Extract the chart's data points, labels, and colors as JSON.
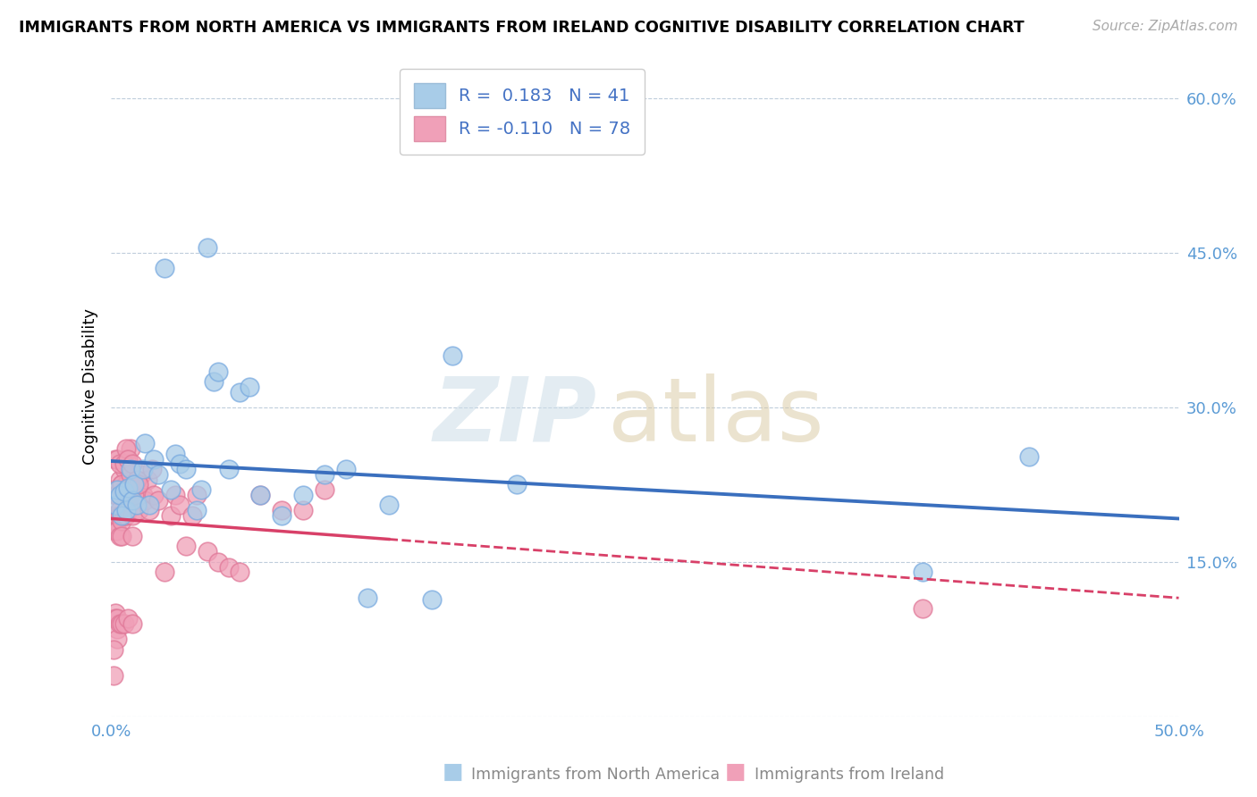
{
  "title": "IMMIGRANTS FROM NORTH AMERICA VS IMMIGRANTS FROM IRELAND COGNITIVE DISABILITY CORRELATION CHART",
  "source": "Source: ZipAtlas.com",
  "ylabel": "Cognitive Disability",
  "xlim": [
    0.0,
    0.5
  ],
  "ylim": [
    0.0,
    0.64
  ],
  "y_ticks": [
    0.0,
    0.15,
    0.3,
    0.45,
    0.6
  ],
  "y_tick_labels": [
    "",
    "15.0%",
    "30.0%",
    "45.0%",
    "60.0%"
  ],
  "x_ticks": [
    0.0,
    0.1,
    0.2,
    0.3,
    0.4,
    0.5
  ],
  "x_tick_labels": [
    "0.0%",
    "",
    "",
    "",
    "",
    "50.0%"
  ],
  "color_blue": "#a8cce8",
  "color_blue_edge": "#7aabe0",
  "color_pink": "#f0a0b8",
  "color_pink_edge": "#e07898",
  "line_blue": "#3a6fbe",
  "line_pink": "#d84068",
  "watermark_zip": "ZIP",
  "watermark_atlas": "atlas",
  "R_blue": 0.183,
  "N_blue": 41,
  "R_pink": -0.11,
  "N_pink": 78,
  "legend_label_na": "Immigrants from North America",
  "legend_label_ire": "Immigrants from Ireland",
  "north_america_x": [
    0.002,
    0.003,
    0.004,
    0.005,
    0.006,
    0.007,
    0.008,
    0.009,
    0.01,
    0.011,
    0.012,
    0.015,
    0.016,
    0.018,
    0.02,
    0.022,
    0.025,
    0.028,
    0.03,
    0.032,
    0.035,
    0.04,
    0.042,
    0.045,
    0.048,
    0.05,
    0.055,
    0.06,
    0.065,
    0.07,
    0.08,
    0.09,
    0.1,
    0.11,
    0.12,
    0.13,
    0.15,
    0.16,
    0.19,
    0.38,
    0.43
  ],
  "north_america_y": [
    0.205,
    0.22,
    0.215,
    0.195,
    0.218,
    0.2,
    0.222,
    0.24,
    0.21,
    0.225,
    0.205,
    0.24,
    0.265,
    0.205,
    0.25,
    0.235,
    0.435,
    0.22,
    0.255,
    0.245,
    0.24,
    0.2,
    0.22,
    0.455,
    0.325,
    0.335,
    0.24,
    0.315,
    0.32,
    0.215,
    0.195,
    0.215,
    0.235,
    0.24,
    0.115,
    0.205,
    0.113,
    0.35,
    0.225,
    0.14,
    0.252
  ],
  "ireland_x": [
    0.001,
    0.001,
    0.001,
    0.002,
    0.002,
    0.002,
    0.002,
    0.002,
    0.003,
    0.003,
    0.003,
    0.003,
    0.003,
    0.003,
    0.004,
    0.004,
    0.004,
    0.004,
    0.004,
    0.005,
    0.005,
    0.005,
    0.005,
    0.006,
    0.006,
    0.006,
    0.006,
    0.007,
    0.007,
    0.007,
    0.008,
    0.008,
    0.008,
    0.009,
    0.009,
    0.01,
    0.01,
    0.01,
    0.011,
    0.012,
    0.013,
    0.014,
    0.015,
    0.016,
    0.017,
    0.018,
    0.019,
    0.02,
    0.022,
    0.025,
    0.028,
    0.03,
    0.032,
    0.035,
    0.038,
    0.04,
    0.045,
    0.05,
    0.055,
    0.06,
    0.07,
    0.08,
    0.09,
    0.1,
    0.002,
    0.003,
    0.004,
    0.005,
    0.006,
    0.007,
    0.008,
    0.009,
    0.01,
    0.011,
    0.012,
    0.013,
    0.38,
    0.001
  ],
  "ireland_y": [
    0.22,
    0.195,
    0.04,
    0.215,
    0.19,
    0.18,
    0.1,
    0.095,
    0.215,
    0.195,
    0.18,
    0.095,
    0.085,
    0.075,
    0.23,
    0.2,
    0.195,
    0.175,
    0.09,
    0.225,
    0.19,
    0.175,
    0.09,
    0.24,
    0.22,
    0.195,
    0.09,
    0.25,
    0.225,
    0.195,
    0.22,
    0.2,
    0.095,
    0.26,
    0.225,
    0.195,
    0.175,
    0.09,
    0.215,
    0.225,
    0.2,
    0.235,
    0.215,
    0.21,
    0.23,
    0.2,
    0.24,
    0.215,
    0.21,
    0.14,
    0.195,
    0.215,
    0.205,
    0.165,
    0.195,
    0.215,
    0.16,
    0.15,
    0.145,
    0.14,
    0.215,
    0.2,
    0.2,
    0.22,
    0.25,
    0.25,
    0.245,
    0.225,
    0.245,
    0.26,
    0.25,
    0.235,
    0.245,
    0.215,
    0.23,
    0.225,
    0.105,
    0.065
  ]
}
